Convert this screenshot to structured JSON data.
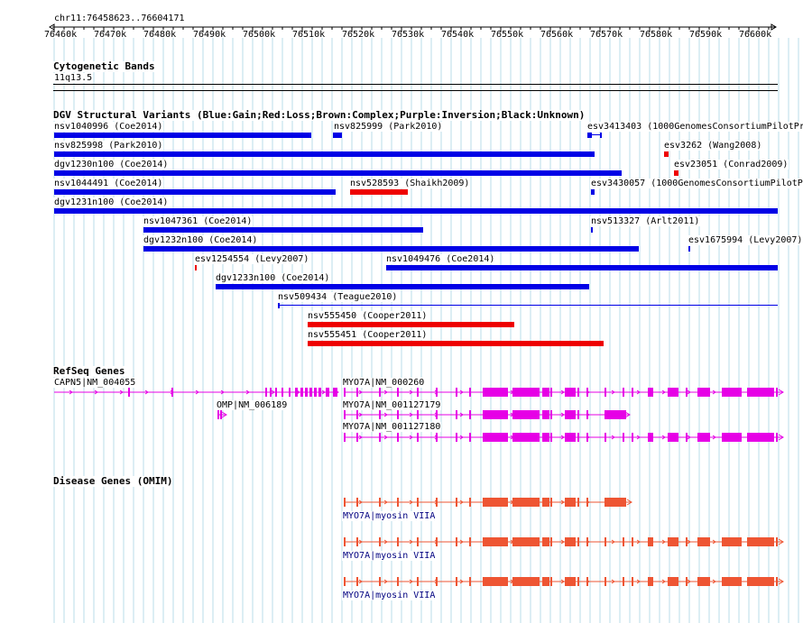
{
  "ruler": {
    "range_label": "chr11:76458623..76604171",
    "ticks": [
      "76460k",
      "76470k",
      "76480k",
      "76490k",
      "76500k",
      "76510k",
      "76520k",
      "76530k",
      "76540k",
      "76550k",
      "76560k",
      "76570k",
      "76580k",
      "76590k",
      "76600k"
    ]
  },
  "cytoband": {
    "title": "Cytogenetic Bands",
    "band": "11q13.5"
  },
  "dgv": {
    "title": "DGV Structural Variants (Blue:Gain;Red:Loss;Brown:Complex;Purple:Inversion;Black:Unknown)",
    "colors": {
      "gain": "#0000e6",
      "loss": "#ee0000"
    },
    "variants": [
      {
        "label": "nsv1040996 (Coe2014)",
        "type": "gain"
      },
      {
        "label": "nsv825999 (Park2010)",
        "type": "gain"
      },
      {
        "label": "esv3413403 (1000GenomesConsortiumPilotPr",
        "type": "gain"
      },
      {
        "label": "nsv825998 (Park2010)",
        "type": "gain"
      },
      {
        "label": "esv3262 (Wang2008)",
        "type": "loss"
      },
      {
        "label": "dgv1230n100 (Coe2014)",
        "type": "gain"
      },
      {
        "label": "esv23051 (Conrad2009)",
        "type": "loss"
      },
      {
        "label": "nsv1044491 (Coe2014)",
        "type": "gain"
      },
      {
        "label": "nsv528593 (Shaikh2009)",
        "type": "loss"
      },
      {
        "label": "esv3430057 (1000GenomesConsortiumPilotPr",
        "type": "gain"
      },
      {
        "label": "dgv1231n100 (Coe2014)",
        "type": "gain"
      },
      {
        "label": "nsv1047361 (Coe2014)",
        "type": "gain"
      },
      {
        "label": "nsv513327 (Arlt2011)",
        "type": "gain"
      },
      {
        "label": "dgv1232n100 (Coe2014)",
        "type": "gain"
      },
      {
        "label": "esv1675994 (Levy2007)",
        "type": "gain"
      },
      {
        "label": "esv1254554 (Levy2007)",
        "type": "loss"
      },
      {
        "label": "nsv1049476 (Coe2014)",
        "type": "gain"
      },
      {
        "label": "dgv1233n100 (Coe2014)",
        "type": "gain"
      },
      {
        "label": "nsv509434 (Teague2010)",
        "type": "gain"
      },
      {
        "label": "nsv555450 (Cooper2011)",
        "type": "loss"
      },
      {
        "label": "nsv555451 (Cooper2011)",
        "type": "loss"
      }
    ]
  },
  "refseq": {
    "title": "RefSeq Genes",
    "color": "#e600e6",
    "genes": [
      {
        "label": "CAPN5|NM_004055"
      },
      {
        "label": "MYO7A|NM_000260"
      },
      {
        "label": "OMP|NM_006189"
      },
      {
        "label": "MYO7A|NM_001127179"
      },
      {
        "label": "MYO7A|NM_001127180"
      }
    ]
  },
  "omim": {
    "title": "Disease Genes (OMIM)",
    "color": "#ee5533",
    "label_color": "#000080",
    "genes": [
      {
        "label": "MYO7A|myosin VIIA"
      },
      {
        "label": "MYO7A|myosin VIIA"
      },
      {
        "label": "MYO7A|myosin VIIA"
      }
    ]
  }
}
